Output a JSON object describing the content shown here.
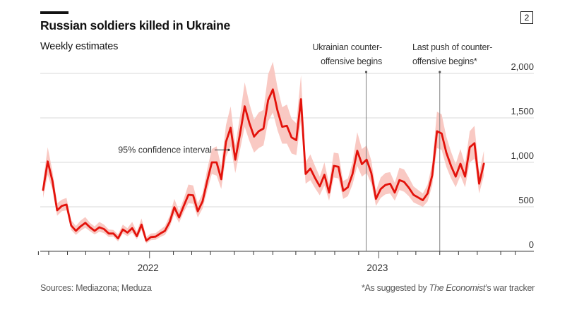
{
  "header": {
    "title": "Russian soldiers killed in Ukraine",
    "subtitle": "Weekly estimates",
    "badge": "2"
  },
  "footer": {
    "sources": "Sources: Mediazona; Meduza",
    "note_prefix": "*As suggested by ",
    "note_italic": "The Economist",
    "note_suffix": "’s war tracker"
  },
  "colors": {
    "line": "#e3120b",
    "band": "#f9c6c0",
    "grid": "#d9d9d9",
    "axis": "#7f7f7f",
    "annotation_line": "#808080"
  },
  "chart_data": {
    "type": "line",
    "title": "Russian soldiers killed in Ukraine",
    "subtitle": "Weekly estimates",
    "xlabel": "",
    "ylabel": "",
    "ylim": [
      0,
      2000
    ],
    "yticks": [
      0,
      500,
      1000,
      1500,
      2000
    ],
    "ytick_labels": [
      "0",
      "500",
      "1,000",
      "1,500",
      "2,000"
    ],
    "y_axis_side": "right",
    "grid": true,
    "x_unit": "week index",
    "x_range": [
      -1,
      100
    ],
    "x_year_labels": [
      {
        "label": "2022",
        "week": 22.7
      },
      {
        "label": "2023",
        "week": 71.6
      }
    ],
    "series": [
      {
        "name": "Weekly estimate",
        "values": [
          690,
          1010,
          790,
          460,
          510,
          525,
          290,
          230,
          280,
          320,
          270,
          230,
          270,
          250,
          200,
          200,
          145,
          245,
          210,
          260,
          170,
          300,
          120,
          160,
          165,
          200,
          230,
          330,
          495,
          380,
          510,
          635,
          630,
          450,
          560,
          790,
          1000,
          1000,
          810,
          1230,
          1390,
          1030,
          1320,
          1630,
          1440,
          1290,
          1350,
          1380,
          1700,
          1820,
          1580,
          1400,
          1410,
          1280,
          1250,
          1710,
          870,
          930,
          825,
          730,
          860,
          660,
          960,
          950,
          680,
          720,
          870,
          1130,
          980,
          1030,
          880,
          590,
          700,
          745,
          760,
          660,
          800,
          780,
          715,
          635,
          605,
          575,
          650,
          855,
          1350,
          1325,
          1110,
          960,
          840,
          985,
          840,
          1170,
          1215,
          760,
          985
        ]
      },
      {
        "name": "95% confidence interval (upper)",
        "values": [
          790,
          1170,
          900,
          540,
          580,
          600,
          350,
          285,
          345,
          385,
          320,
          280,
          330,
          300,
          245,
          240,
          190,
          300,
          260,
          330,
          220,
          370,
          160,
          200,
          205,
          245,
          285,
          400,
          590,
          450,
          590,
          750,
          740,
          540,
          650,
          920,
          1150,
          1180,
          950,
          1420,
          1630,
          1190,
          1520,
          1900,
          1660,
          1480,
          1560,
          1590,
          1990,
          2130,
          1840,
          1620,
          1650,
          1490,
          1440,
          1980,
          1000,
          1090,
          960,
          840,
          1000,
          760,
          1110,
          1100,
          790,
          820,
          1000,
          1340,
          1150,
          1190,
          1020,
          680,
          830,
          880,
          890,
          770,
          940,
          920,
          830,
          730,
          690,
          650,
          750,
          990,
          1570,
          1540,
          1290,
          1120,
          980,
          1150,
          980,
          1350,
          1410,
          880,
          1130
        ]
      },
      {
        "name": "95% confidence interval (lower)",
        "values": [
          600,
          860,
          690,
          400,
          450,
          460,
          240,
          185,
          230,
          265,
          225,
          190,
          220,
          205,
          160,
          165,
          110,
          200,
          170,
          210,
          135,
          240,
          90,
          125,
          130,
          160,
          185,
          270,
          420,
          320,
          440,
          540,
          535,
          380,
          480,
          680,
          870,
          850,
          700,
          1060,
          1180,
          880,
          1140,
          1400,
          1240,
          1110,
          1160,
          1190,
          1460,
          1560,
          1360,
          1210,
          1210,
          1100,
          1080,
          1470,
          760,
          800,
          710,
          630,
          740,
          570,
          830,
          820,
          590,
          620,
          750,
          960,
          840,
          880,
          760,
          510,
          600,
          640,
          650,
          570,
          690,
          670,
          620,
          550,
          525,
          500,
          560,
          740,
          1160,
          1140,
          950,
          820,
          720,
          850,
          720,
          1000,
          1040,
          650,
          850
        ]
      }
    ],
    "x_major_tick_weeks": [
      22.7,
      71.6
    ],
    "x_minor_tick_weeks": [
      -1,
      1.2,
      5.2,
      9.1,
      14.2,
      18.3,
      27.8,
      31.7,
      35.7,
      40.8,
      44.9,
      49,
      53.9,
      58,
      62.2,
      67.3,
      75.6,
      79.5,
      84.6,
      88.6,
      92.6,
      97.6,
      100.7
    ],
    "annotations": [
      {
        "text_line1": "Ukrainian counter-",
        "text_line2": "offensive begins",
        "week": 68.9,
        "type": "vertical-line"
      },
      {
        "text_line1": "Last push of counter-",
        "text_line2": "offensive begins*",
        "week": 84.6,
        "type": "vertical-line"
      },
      {
        "text": "95% confidence interval",
        "week": 39,
        "value": 1140,
        "type": "arrow-label"
      }
    ]
  }
}
